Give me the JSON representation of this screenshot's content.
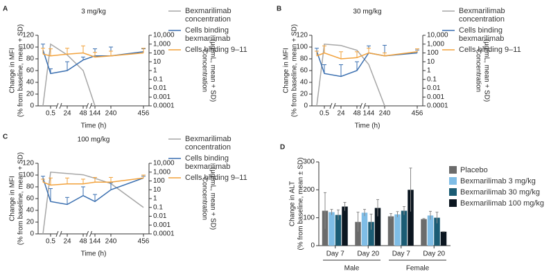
{
  "chart_data": [
    {
      "type": "line",
      "panel": "A",
      "title": "3 mg/kg",
      "xlabel": "Time (h)",
      "ylabel": [
        "Change in MFI",
        "(% from baseline, mean + SD)"
      ],
      "y2label": [
        "Concentration",
        "(µg/mL, mean + SD)"
      ],
      "categories": [
        null,
        "0.5",
        "24",
        "48",
        "144",
        "240",
        "456"
      ],
      "ylim": [
        0,
        120
      ],
      "yticks": [
        0,
        20,
        40,
        60,
        80,
        100,
        120
      ],
      "y2lim": [
        0.0001,
        10000
      ],
      "y2scale": "log",
      "y2ticks": [
        0.0001,
        0.001,
        0.01,
        0.1,
        1,
        10,
        100,
        {
          "value": 1000,
          "label": "1,000"
        },
        {
          "value": 10000,
          "label": "10,000"
        }
      ],
      "series": [
        {
          "name": "Bexmarilimab concentration",
          "color": "#a6a6a6",
          "axis": "y2",
          "values": [
            0.0001,
            1000,
            60,
            1,
            0.0001,
            null,
            null
          ]
        },
        {
          "name": "Cells binding bexmarilimab",
          "color": "#3a6fb0",
          "values": [
            95,
            55,
            60,
            78,
            85,
            85,
            92
          ],
          "errors": [
            10,
            8,
            15,
            5,
            12,
            15,
            5
          ]
        },
        {
          "name": "Cells binding 9–11",
          "color": "#f2a13a",
          "values": [
            88,
            85,
            88,
            90,
            83,
            85,
            90
          ],
          "errors": [
            10,
            12,
            10,
            12,
            8,
            8,
            8
          ]
        }
      ]
    },
    {
      "type": "line",
      "panel": "B",
      "title": "30 mg/kg",
      "xlabel": "Time (h)",
      "ylabel": [
        "Change in MFI",
        "(% from baseline, mean + SD)"
      ],
      "y2label": [
        "Concentration",
        "(µg/mL, mean + SD)"
      ],
      "categories": [
        null,
        "0.5",
        "24",
        "48",
        "144",
        "240",
        "456"
      ],
      "ylim": [
        0,
        120
      ],
      "yticks": [
        0,
        20,
        40,
        60,
        80,
        100,
        120
      ],
      "y2lim": [
        0.0001,
        10000
      ],
      "y2scale": "log",
      "y2ticks": [
        0.0001,
        0.001,
        0.01,
        0.1,
        1,
        10,
        100,
        {
          "value": 1000,
          "label": "1,000"
        },
        {
          "value": 10000,
          "label": "10,000"
        }
      ],
      "series": [
        {
          "name": "Bexmarilimab concentration",
          "color": "#a6a6a6",
          "axis": "y2",
          "values": [
            0.0001,
            1000,
            700,
            200,
            5,
            0.0001,
            null
          ]
        },
        {
          "name": "Cells binding bexmarilimab",
          "color": "#3a6fb0",
          "values": [
            93,
            55,
            50,
            60,
            90,
            85,
            90
          ],
          "errors": [
            5,
            15,
            20,
            15,
            12,
            18,
            5
          ]
        },
        {
          "name": "Cells binding 9–11",
          "color": "#f2a13a",
          "values": [
            85,
            90,
            80,
            82,
            90,
            85,
            92
          ],
          "errors": [
            8,
            12,
            12,
            10,
            8,
            5,
            5
          ]
        }
      ]
    },
    {
      "type": "line",
      "panel": "C",
      "title": "100 mg/kg",
      "xlabel": "Time (h)",
      "ylabel": [
        "Change in MFI",
        "(% from baseline, mean + SD)"
      ],
      "y2label": [
        "Concentration",
        "(µg/mL, mean + SD)"
      ],
      "categories": [
        null,
        "0.5",
        "24",
        "48",
        "144",
        "240",
        "456"
      ],
      "ylim": [
        0,
        120
      ],
      "yticks": [
        0,
        20,
        40,
        60,
        80,
        100,
        120
      ],
      "y2lim": [
        0.0001,
        10000
      ],
      "y2scale": "log",
      "y2ticks": [
        0.0001,
        0.001,
        0.01,
        0.1,
        1,
        10,
        100,
        {
          "value": 1000,
          "label": "1,000"
        },
        {
          "value": 10000,
          "label": "10,000"
        }
      ],
      "series": [
        {
          "name": "Bexmarilimab concentration",
          "color": "#a6a6a6",
          "axis": "y2",
          "values": [
            0.0001,
            1000,
            700,
            500,
            200,
            50,
            0.1
          ]
        },
        {
          "name": "Cells binding bexmarilimab",
          "color": "#3a6fb0",
          "values": [
            95,
            55,
            50,
            65,
            55,
            75,
            95
          ],
          "errors": [
            3,
            22,
            12,
            15,
            12,
            12,
            3
          ]
        },
        {
          "name": "Cells binding 9–11",
          "color": "#f2a13a",
          "values": [
            88,
            83,
            85,
            85,
            88,
            88,
            95
          ],
          "errors": [
            5,
            12,
            10,
            8,
            8,
            8,
            5
          ]
        }
      ]
    },
    {
      "type": "bar",
      "panel": "D",
      "ylabel": [
        "Change in ALT",
        "(% from baseline, mean ± SD)"
      ],
      "categories": [
        "Day 7",
        "Day 20",
        "Day 7",
        "Day 20"
      ],
      "group_labels": [
        "Male",
        "Female"
      ],
      "ylim": [
        0,
        300
      ],
      "yticks": [
        0,
        100,
        200,
        300
      ],
      "series": [
        {
          "name": "Placebo",
          "color": "#6b6b6b",
          "values": [
            125,
            85,
            105,
            95
          ],
          "errors": [
            65,
            35,
            10,
            2
          ]
        },
        {
          "name": "Bexmarilimab 3 mg/kg",
          "color": "#7fbde6",
          "values": [
            120,
            118,
            112,
            108
          ],
          "errors": [
            10,
            12,
            10,
            15
          ]
        },
        {
          "name": "Bexmarilimab 30 mg/kg",
          "color": "#1b5c74",
          "values": [
            110,
            85,
            125,
            100
          ],
          "errors": [
            18,
            28,
            15,
            20
          ]
        },
        {
          "name": "Bexmarilimab 100 mg/kg",
          "color": "#0b1620",
          "values": [
            140,
            135,
            200,
            50
          ],
          "errors": [
            15,
            30,
            78,
            0
          ]
        }
      ]
    }
  ]
}
